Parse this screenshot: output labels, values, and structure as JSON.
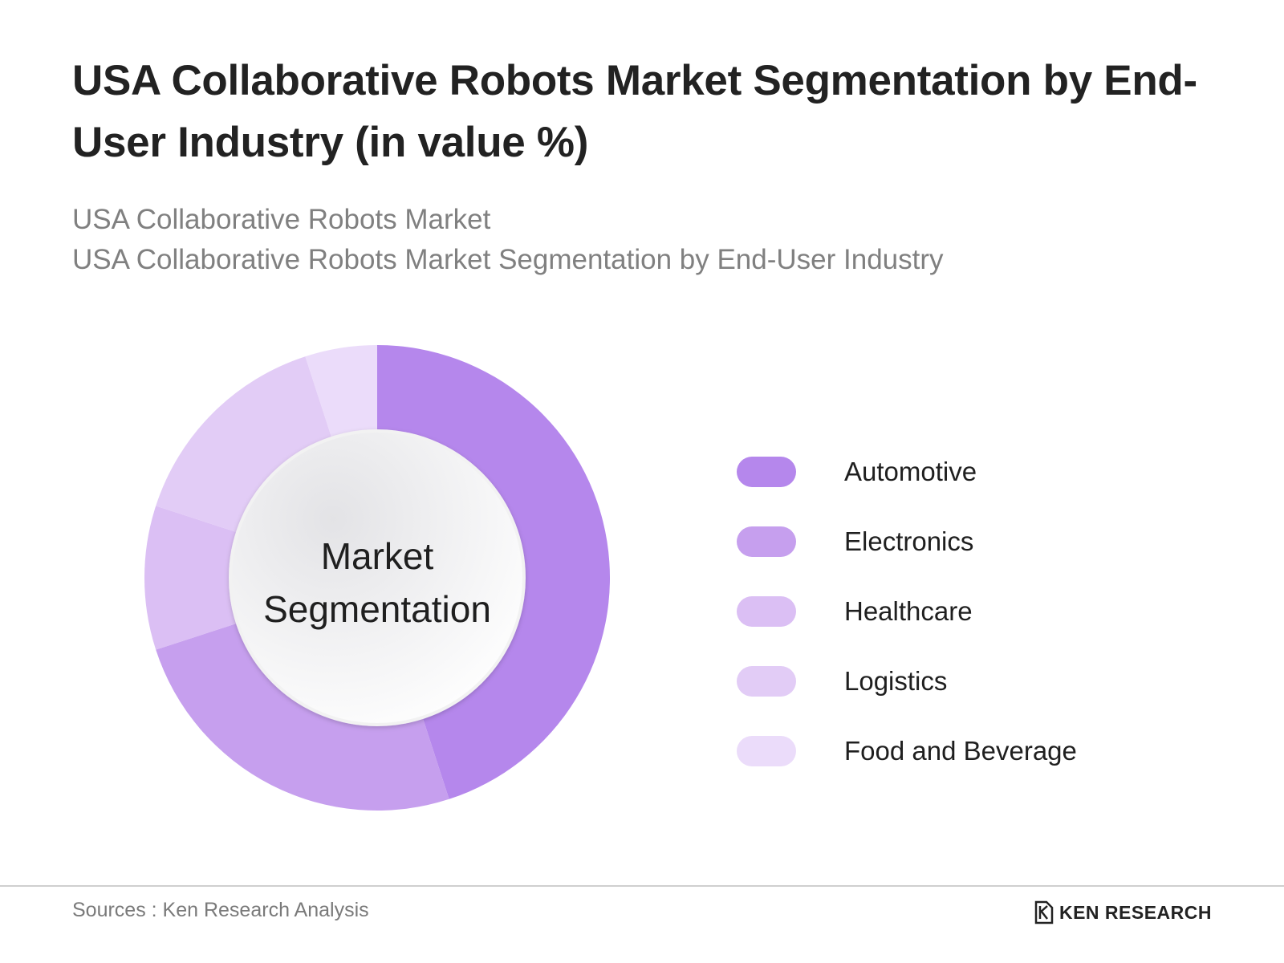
{
  "header": {
    "title": "USA Collaborative Robots Market Segmentation by End-User Industry (in value %)",
    "subtitle_line1": "USA Collaborative Robots Market",
    "subtitle_line2": "USA Collaborative Robots Market Segmentation by End-User Industry"
  },
  "chart_data": {
    "type": "pie",
    "variant": "donut",
    "center_label_line1": "Market",
    "center_label_line2": "Segmentation",
    "legend_placement": "right",
    "categories": [
      "Automotive",
      "Electronics",
      "Healthcare",
      "Logistics",
      "Food and Beverage"
    ],
    "values": [
      45,
      25,
      10,
      15,
      5
    ],
    "unit": "%",
    "colors": [
      "#b587ec",
      "#c69fee",
      "#dbbff4",
      "#e2ccf6",
      "#ebdcfa"
    ],
    "start_angle": "12 o'clock",
    "direction": "clockwise"
  },
  "footer": {
    "source": "Sources : Ken Research Analysis",
    "brand": "KEN RESEARCH",
    "brand_icon": "ken-research-logo-icon"
  }
}
